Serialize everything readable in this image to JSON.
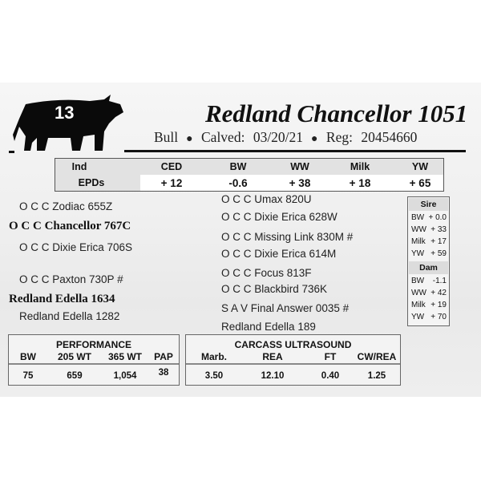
{
  "lot_number": "13",
  "animal": {
    "name": "Redland Chancellor 1051",
    "sex": "Bull",
    "calved_label": "Calved:",
    "calved": "03/20/21",
    "reg_label": "Reg:",
    "reg": "20454660"
  },
  "epds": {
    "row_labels": [
      "Ind",
      "EPDs"
    ],
    "columns": [
      {
        "label": "CED",
        "value": "+ 12"
      },
      {
        "label": "BW",
        "value": "-0.6"
      },
      {
        "label": "WW",
        "value": "+ 38"
      },
      {
        "label": "Milk",
        "value": "+ 18"
      },
      {
        "label": "YW",
        "value": "+ 65"
      }
    ]
  },
  "pedigree": {
    "sire": "O C C Chancellor 767C",
    "sire_sire": "O C C Zodiac 655Z",
    "sire_dam": "O C C Dixie Erica 706S",
    "dam": "Redland Edella 1634",
    "dam_sire": "O C C Paxton 730P #",
    "dam_dam": "Redland Edella 1282",
    "great": [
      "O C C Umax 820U",
      "O C C Dixie Erica 628W",
      "O C C Missing Link 830M #",
      "O C C Dixie Erica 614M",
      "O C C Focus 813F",
      "O C C Blackbird 736K",
      "S A V Final Answer 0035 #",
      "Redland Edella 189"
    ]
  },
  "parent_epds": {
    "sire": {
      "title": "Sire",
      "rows": [
        [
          "BW",
          "+ 0.0"
        ],
        [
          "WW",
          "+ 33"
        ],
        [
          "Milk",
          "+ 17"
        ],
        [
          "YW",
          "+ 59"
        ]
      ]
    },
    "dam": {
      "title": "Dam",
      "rows": [
        [
          "BW",
          "-1.1"
        ],
        [
          "WW",
          "+ 42"
        ],
        [
          "Milk",
          "+ 19"
        ],
        [
          "YW",
          "+ 70"
        ]
      ]
    }
  },
  "performance": {
    "title": "PERFORMANCE",
    "headers": [
      "BW",
      "205 WT",
      "365 WT",
      "PAP"
    ],
    "values": [
      "75",
      "659",
      "1,054",
      "38"
    ]
  },
  "carcass": {
    "title": "CARCASS ULTRASOUND",
    "headers": [
      "Marb.",
      "REA",
      "FT",
      "CW/REA"
    ],
    "values": [
      "3.50",
      "12.10",
      "0.40",
      "1.25"
    ]
  }
}
